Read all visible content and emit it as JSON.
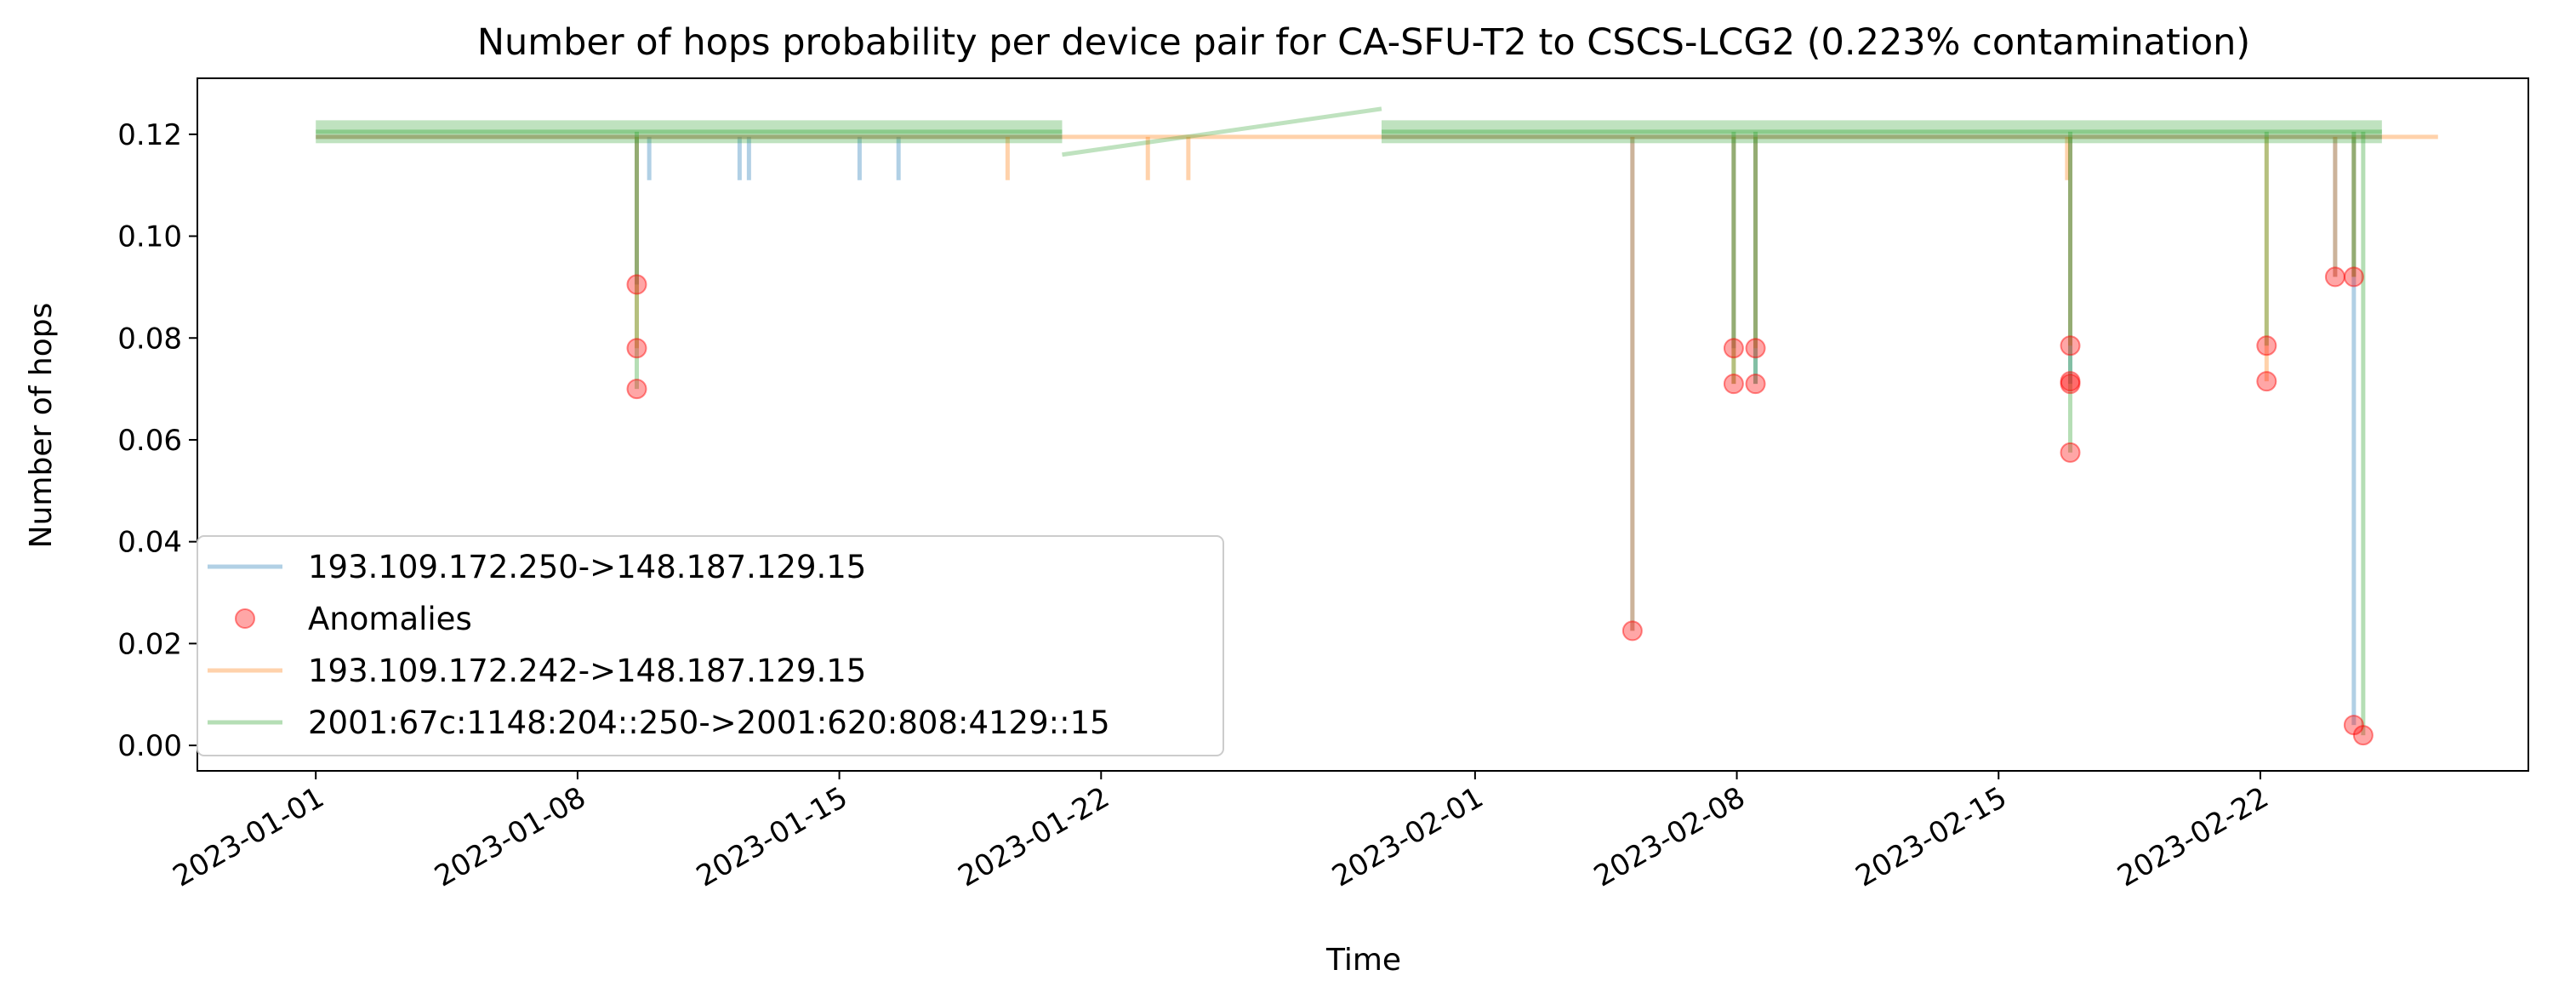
{
  "chart_data": {
    "type": "line",
    "title": "Number of hops probability per device pair for CA-SFU-T2 to CSCS-LCG2 (0.223% contamination)",
    "xlabel": "Time",
    "ylabel": "Number of hops",
    "x_type": "date",
    "xlim": [
      "2022-12-28T20:00",
      "2023-03-01T04:00"
    ],
    "ylim": [
      -0.005,
      0.131
    ],
    "x_ticks": [
      "2023-01-01",
      "2023-01-08",
      "2023-01-15",
      "2023-01-22",
      "2023-02-01",
      "2023-02-08",
      "2023-02-15",
      "2023-02-22"
    ],
    "y_ticks": [
      "0.00",
      "0.02",
      "0.04",
      "0.06",
      "0.08",
      "0.10",
      "0.12"
    ],
    "legend_position": "lower-left",
    "series": [
      {
        "name": "193.109.172.250->148.187.129.15",
        "color": "#1f77b4",
        "baseline": 0.1195,
        "segments": [
          [
            "2023-01-01T00:00",
            "2023-01-20T23:00"
          ],
          [
            "2023-01-29T12:00",
            "2023-02-25T06:00"
          ]
        ],
        "dips": [
          {
            "x": "2023-01-09T14:00",
            "y": 0.0905
          },
          {
            "x": "2023-01-09T22:00",
            "y": 0.111
          },
          {
            "x": "2023-01-12T08:00",
            "y": 0.111
          },
          {
            "x": "2023-01-12T14:00",
            "y": 0.111
          },
          {
            "x": "2023-01-15T13:00",
            "y": 0.111
          },
          {
            "x": "2023-01-16T14:00",
            "y": 0.111
          },
          {
            "x": "2023-02-05T05:00",
            "y": 0.0225
          },
          {
            "x": "2023-02-07T22:00",
            "y": 0.078
          },
          {
            "x": "2023-02-08T12:00",
            "y": 0.071
          },
          {
            "x": "2023-02-16T22:00",
            "y": 0.071
          },
          {
            "x": "2023-02-24T00:00",
            "y": 0.092
          },
          {
            "x": "2023-02-24T12:00",
            "y": 0.004
          }
        ]
      },
      {
        "name": "193.109.172.242->148.187.129.15",
        "color": "#ff7f0e",
        "baseline": 0.1195,
        "segments": [
          [
            "2023-01-01T00:00",
            "2023-02-26T18:00"
          ]
        ],
        "dips": [
          {
            "x": "2023-01-09T14:00",
            "y": 0.078
          },
          {
            "x": "2023-01-19T12:00",
            "y": 0.111
          },
          {
            "x": "2023-01-23T06:00",
            "y": 0.111
          },
          {
            "x": "2023-01-24T08:00",
            "y": 0.111
          },
          {
            "x": "2023-02-05T05:00",
            "y": 0.0225
          },
          {
            "x": "2023-02-07T22:00",
            "y": 0.071
          },
          {
            "x": "2023-02-08T12:00",
            "y": 0.078
          },
          {
            "x": "2023-02-16T20:00",
            "y": 0.111
          },
          {
            "x": "2023-02-16T22:00",
            "y": 0.0785
          },
          {
            "x": "2023-02-22T04:00",
            "y": 0.0715
          },
          {
            "x": "2023-02-24T00:00",
            "y": 0.092
          },
          {
            "x": "2023-02-24T12:00",
            "y": 0.092
          }
        ]
      },
      {
        "name": "2001:67c:1148:204::250->2001:620:808:4129::15",
        "color": "#2ca02c",
        "baseline": 0.1205,
        "band": 0.0045,
        "segments": [
          [
            "2023-01-01T00:00",
            "2023-01-20T23:00"
          ],
          [
            "2023-01-29T12:00",
            "2023-02-25T06:00"
          ]
        ],
        "connector": [
          [
            "2023-01-20T23:00",
            0.116
          ],
          [
            "2023-01-29T12:00",
            0.125
          ]
        ],
        "dips": [
          {
            "x": "2023-01-09T14:00",
            "y": 0.07
          },
          {
            "x": "2023-02-07T22:00",
            "y": 0.071
          },
          {
            "x": "2023-02-08T12:00",
            "y": 0.071
          },
          {
            "x": "2023-02-16T22:00",
            "y": 0.0575
          },
          {
            "x": "2023-02-22T04:00",
            "y": 0.0785
          },
          {
            "x": "2023-02-24T12:00",
            "y": 0.092
          },
          {
            "x": "2023-02-24T18:00",
            "y": 0.002
          }
        ]
      }
    ],
    "anomalies": {
      "name": "Anomalies",
      "color": "#ff0000",
      "points": [
        {
          "x": "2023-01-09T14:00",
          "y": 0.0905
        },
        {
          "x": "2023-01-09T14:00",
          "y": 0.078
        },
        {
          "x": "2023-01-09T14:00",
          "y": 0.07
        },
        {
          "x": "2023-02-05T05:00",
          "y": 0.0225
        },
        {
          "x": "2023-02-07T22:00",
          "y": 0.078
        },
        {
          "x": "2023-02-07T22:00",
          "y": 0.071
        },
        {
          "x": "2023-02-08T12:00",
          "y": 0.078
        },
        {
          "x": "2023-02-08T12:00",
          "y": 0.071
        },
        {
          "x": "2023-02-16T22:00",
          "y": 0.0785
        },
        {
          "x": "2023-02-16T22:00",
          "y": 0.0715
        },
        {
          "x": "2023-02-16T22:00",
          "y": 0.071
        },
        {
          "x": "2023-02-16T22:00",
          "y": 0.0575
        },
        {
          "x": "2023-02-22T04:00",
          "y": 0.0785
        },
        {
          "x": "2023-02-22T04:00",
          "y": 0.0715
        },
        {
          "x": "2023-02-24T00:00",
          "y": 0.092
        },
        {
          "x": "2023-02-24T12:00",
          "y": 0.092
        },
        {
          "x": "2023-02-24T12:00",
          "y": 0.004
        },
        {
          "x": "2023-02-24T18:00",
          "y": 0.002
        }
      ]
    }
  }
}
